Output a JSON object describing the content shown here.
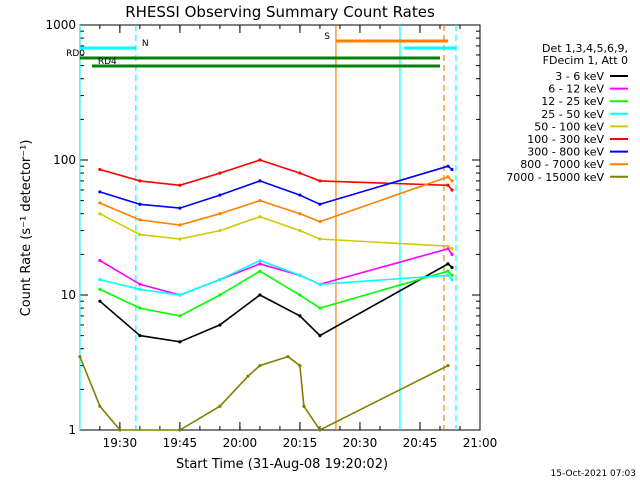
{
  "chart_data": {
    "type": "line",
    "title": "RHESSI Observing Summary Count Rates",
    "xlabel": "Start Time (31-Aug-08 19:20:02)",
    "ylabel": "Count Rate (s⁻¹ detector⁻¹)",
    "x_ticks": [
      "19:30",
      "19:45",
      "20:00",
      "20:15",
      "20:30",
      "20:45",
      "21:00"
    ],
    "y_ticks": [
      "1",
      "10",
      "100",
      "1000"
    ],
    "yscale": "log",
    "xlim": [
      "19:20:02",
      "21:00:00"
    ],
    "ylim": [
      1,
      1000
    ],
    "legend_header": [
      "Det 1,3,4,5,6,9,",
      "FDecim 1, Att 0"
    ],
    "series": [
      {
        "name": "3 - 6 keV",
        "color": "#000000",
        "x": [
          "19:25",
          "19:35",
          "19:45",
          "19:55",
          "20:05",
          "20:15",
          "20:20",
          "20:52",
          "20:53"
        ],
        "values": [
          9,
          5,
          4.5,
          6,
          10,
          7,
          5,
          17,
          16
        ]
      },
      {
        "name": "6 - 12 keV",
        "color": "#ff00ff",
        "x": [
          "19:25",
          "19:35",
          "19:45",
          "19:55",
          "20:05",
          "20:15",
          "20:20",
          "20:52",
          "20:53"
        ],
        "values": [
          18,
          12,
          10,
          13,
          17,
          14,
          12,
          22,
          20
        ]
      },
      {
        "name": "12 - 25 keV",
        "color": "#00ff00",
        "x": [
          "19:25",
          "19:35",
          "19:45",
          "19:55",
          "20:05",
          "20:15",
          "20:20",
          "20:52",
          "20:53"
        ],
        "values": [
          11,
          8,
          7,
          10,
          15,
          10,
          8,
          15,
          14
        ]
      },
      {
        "name": "25 - 50 keV",
        "color": "#00ffff",
        "x": [
          "19:25",
          "19:35",
          "19:45",
          "19:55",
          "20:05",
          "20:15",
          "20:20",
          "20:52",
          "20:53"
        ],
        "values": [
          13,
          11,
          10,
          13,
          18,
          14,
          12,
          14,
          13
        ]
      },
      {
        "name": "50 - 100 keV",
        "color": "#cccc00",
        "x": [
          "19:25",
          "19:35",
          "19:45",
          "19:55",
          "20:05",
          "20:15",
          "20:20",
          "20:52",
          "20:53"
        ],
        "values": [
          40,
          28,
          26,
          30,
          38,
          30,
          26,
          23,
          22
        ]
      },
      {
        "name": "100 - 300 keV",
        "color": "#ff0000",
        "x": [
          "19:25",
          "19:35",
          "19:45",
          "19:55",
          "20:05",
          "20:15",
          "20:20",
          "20:52",
          "20:53"
        ],
        "values": [
          85,
          70,
          65,
          80,
          100,
          80,
          70,
          65,
          60
        ]
      },
      {
        "name": "300 - 800 keV",
        "color": "#0000ff",
        "x": [
          "19:25",
          "19:35",
          "19:45",
          "19:55",
          "20:05",
          "20:15",
          "20:20",
          "20:52",
          "20:53"
        ],
        "values": [
          58,
          47,
          44,
          55,
          70,
          55,
          47,
          90,
          85
        ]
      },
      {
        "name": "800 - 7000 keV",
        "color": "#ff8000",
        "x": [
          "19:25",
          "19:35",
          "19:45",
          "19:55",
          "20:05",
          "20:15",
          "20:20",
          "20:52",
          "20:53"
        ],
        "values": [
          48,
          36,
          33,
          40,
          50,
          40,
          35,
          75,
          70
        ]
      },
      {
        "name": "7000 - 15000 keV",
        "color": "#808000",
        "x": [
          "19:20",
          "19:25",
          "19:30",
          "19:45",
          "19:55",
          "20:02",
          "20:05",
          "20:12",
          "20:15",
          "20:16",
          "20:20",
          "20:52"
        ],
        "values": [
          3.5,
          1.5,
          1,
          1,
          1.5,
          2.5,
          3,
          3.5,
          3,
          1.5,
          1,
          3
        ]
      }
    ],
    "flag_bars": [
      {
        "label": "N",
        "color": "#00ffff",
        "segments": [
          [
            "19:20",
            "19:34"
          ],
          [
            "20:41",
            "20:54"
          ]
        ]
      },
      {
        "label": "S",
        "color": "#ff8000",
        "segments": [
          [
            "20:24",
            "20:52"
          ]
        ]
      },
      {
        "label": "RD0",
        "color": "#008000",
        "segments": [
          [
            "19:20",
            "20:50"
          ]
        ]
      },
      {
        "label": "RD4",
        "color": "#008000",
        "segments": [
          [
            "19:23",
            "20:50"
          ]
        ]
      }
    ],
    "vertical_lines": [
      {
        "x": "19:20",
        "color": "#00ffff",
        "style": "solid"
      },
      {
        "x": "19:34",
        "color": "#00ffff",
        "style": "dashed"
      },
      {
        "x": "20:24",
        "color": "#ff8000",
        "style": "solid"
      },
      {
        "x": "20:40",
        "color": "#00ffff",
        "style": "solid"
      },
      {
        "x": "20:51",
        "color": "#ff8000",
        "style": "dashed"
      },
      {
        "x": "20:54",
        "color": "#00ffff",
        "style": "dashed"
      }
    ]
  },
  "footer": {
    "timestamp": "15-Oct-2021 07:03"
  }
}
